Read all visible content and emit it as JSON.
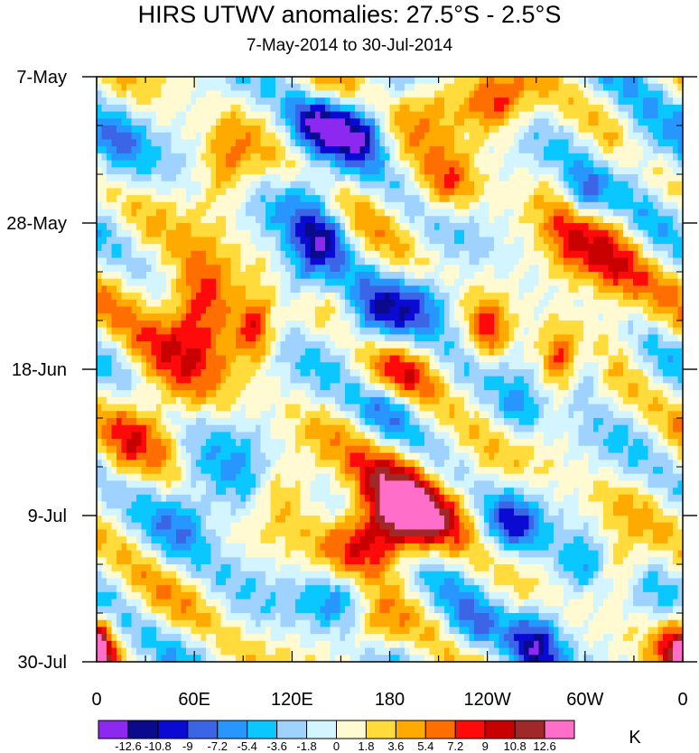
{
  "chart_data": {
    "type": "heatmap",
    "title": "HIRS UTWV anomalies: 27.5°S - 2.5°S",
    "subtitle": "7-May-2014 to 30-Jul-2014",
    "xlabel": "",
    "ylabel": "",
    "x_axis": {
      "range_deg_east": [
        0,
        360
      ],
      "tick_labels": [
        "0",
        "60E",
        "120E",
        "180",
        "120W",
        "60W",
        "0"
      ]
    },
    "y_axis": {
      "range_days": [
        0,
        84
      ],
      "direction": "down",
      "tick_labels": [
        "7-May",
        "28-May",
        "18-Jun",
        "9-Jul",
        "30-Jul"
      ]
    },
    "colorbar": {
      "units": "K",
      "levels": [
        "-12.6",
        "-10.8",
        "-9",
        "-7.2",
        "-5.4",
        "-3.6",
        "-1.8",
        "0",
        "1.8",
        "3.6",
        "5.4",
        "7.2",
        "9",
        "10.8",
        "12.6"
      ],
      "colors": [
        "#8c28f0",
        "#0a0a8c",
        "#0a0ad2",
        "#3c64e6",
        "#2896ff",
        "#0ac8ff",
        "#a0d2ff",
        "#d2f5ff",
        "#fffad2",
        "#ffdc3c",
        "#ffaa00",
        "#ff6e00",
        "#ff0a0a",
        "#c80000",
        "#a02828",
        "#ff6ec8"
      ]
    },
    "field_description": "Eastward-propagating alternating bands; positive anomalies strongest near 180 in early July",
    "features": [
      {
        "lon": 65,
        "day": 32,
        "val": 11.0,
        "sx": 14,
        "sy": 5
      },
      {
        "lon": 97,
        "day": 36,
        "val": 10.0,
        "sx": 8,
        "sy": 3
      },
      {
        "lon": 42,
        "day": 40,
        "val": 6.0,
        "sx": 24,
        "sy": 6
      },
      {
        "lon": 183,
        "day": 58,
        "val": 10.0,
        "sx": 20,
        "sy": 4
      },
      {
        "lon": 190,
        "day": 63,
        "val": 10.5,
        "sx": 22,
        "sy": 3
      },
      {
        "lon": 168,
        "day": 67,
        "val": 11.0,
        "sx": 22,
        "sy": 3
      },
      {
        "lon": 205,
        "day": 4,
        "val": 7.0,
        "sx": 14,
        "sy": 3
      },
      {
        "lon": 245,
        "day": 4,
        "val": 9.0,
        "sx": 14,
        "sy": 3
      },
      {
        "lon": 215,
        "day": 16,
        "val": 7.0,
        "sx": 12,
        "sy": 3
      },
      {
        "lon": 290,
        "day": 25,
        "val": 7.5,
        "sx": 12,
        "sy": 5
      },
      {
        "lon": 315,
        "day": 28,
        "val": 8.0,
        "sx": 14,
        "sy": 6
      },
      {
        "lon": 240,
        "day": 37,
        "val": 8.5,
        "sx": 8,
        "sy": 3
      },
      {
        "lon": 285,
        "day": 41,
        "val": 8.5,
        "sx": 8,
        "sy": 3
      },
      {
        "lon": 185,
        "day": 44,
        "val": 7.0,
        "sx": 14,
        "sy": 3
      },
      {
        "lon": 80,
        "day": 13,
        "val": 6.0,
        "sx": 10,
        "sy": 4
      },
      {
        "lon": 355,
        "day": 82,
        "val": 8.5,
        "sx": 8,
        "sy": 3
      },
      {
        "lon": 3,
        "day": 82,
        "val": 8.5,
        "sx": 6,
        "sy": 3
      },
      {
        "lon": 170,
        "day": 79,
        "val": 6.0,
        "sx": 14,
        "sy": 3
      },
      {
        "lon": 320,
        "day": 70,
        "val": 6.0,
        "sx": 10,
        "sy": 3
      },
      {
        "lon": 30,
        "day": 55,
        "val": 6.0,
        "sx": 14,
        "sy": 6
      },
      {
        "lon": 110,
        "day": 60,
        "val": 5.0,
        "sx": 16,
        "sy": 4
      },
      {
        "lon": 140,
        "day": 7,
        "val": -12.0,
        "sx": 16,
        "sy": 3
      },
      {
        "lon": 165,
        "day": 8,
        "val": -8.0,
        "sx": 10,
        "sy": 3
      },
      {
        "lon": 130,
        "day": 17,
        "val": -6.0,
        "sx": 12,
        "sy": 3
      },
      {
        "lon": 140,
        "day": 23,
        "val": -10.5,
        "sx": 12,
        "sy": 3
      },
      {
        "lon": 125,
        "day": 29,
        "val": -8.0,
        "sx": 12,
        "sy": 3
      },
      {
        "lon": 205,
        "day": 32,
        "val": -8.0,
        "sx": 16,
        "sy": 3
      },
      {
        "lon": 170,
        "day": 35,
        "val": -7.5,
        "sx": 14,
        "sy": 3
      },
      {
        "lon": 180,
        "day": 47,
        "val": -8.0,
        "sx": 12,
        "sy": 3
      },
      {
        "lon": 260,
        "day": 48,
        "val": -6.0,
        "sx": 10,
        "sy": 3
      },
      {
        "lon": 300,
        "day": 42,
        "val": -7.0,
        "sx": 10,
        "sy": 3
      },
      {
        "lon": 90,
        "day": 60,
        "val": -7.0,
        "sx": 14,
        "sy": 5
      },
      {
        "lon": 55,
        "day": 62,
        "val": -6.0,
        "sx": 14,
        "sy": 5
      },
      {
        "lon": 255,
        "day": 64,
        "val": -8.0,
        "sx": 12,
        "sy": 3
      },
      {
        "lon": 300,
        "day": 70,
        "val": -7.0,
        "sx": 12,
        "sy": 3
      },
      {
        "lon": 150,
        "day": 75,
        "val": -8.5,
        "sx": 16,
        "sy": 3
      },
      {
        "lon": 270,
        "day": 81,
        "val": -11.5,
        "sx": 12,
        "sy": 4
      },
      {
        "lon": 335,
        "day": 10,
        "val": -7.0,
        "sx": 12,
        "sy": 4
      },
      {
        "lon": 300,
        "day": 17,
        "val": -9.0,
        "sx": 10,
        "sy": 3
      },
      {
        "lon": 10,
        "day": 10,
        "val": -6.0,
        "sx": 12,
        "sy": 4
      },
      {
        "lon": 30,
        "day": 57,
        "val": -5.5,
        "sx": 8,
        "sy": 3
      },
      {
        "lon": 230,
        "day": 80,
        "val": -6.0,
        "sx": 12,
        "sy": 3
      }
    ]
  }
}
